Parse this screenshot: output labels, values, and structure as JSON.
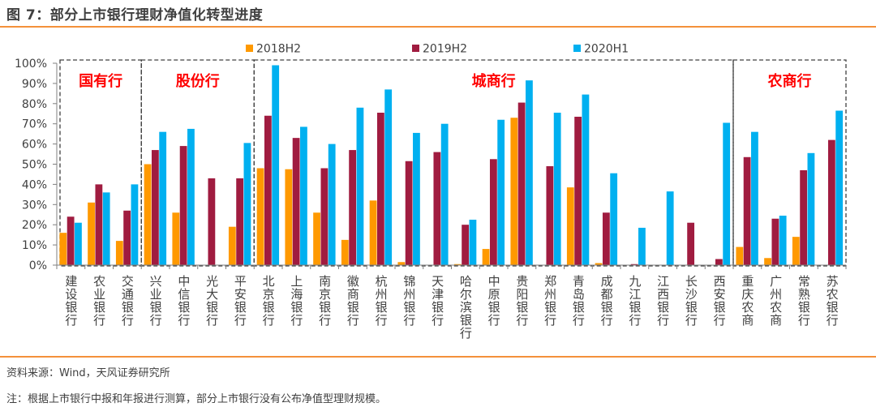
{
  "figure": {
    "title": "图 7：部分上市银行理财净值化转型进度",
    "source": "资料来源：Wind，天风证券研究所",
    "note": "注：根据上市银行中报和年报进行测算，部分上市银行没有公布净值型理财规模。"
  },
  "chart_data": {
    "type": "bar",
    "title": "部分上市银行理财净值化转型进度",
    "xlabel": "",
    "ylabel": "",
    "ylim": [
      0,
      100
    ],
    "yticks": [
      "0%",
      "10%",
      "20%",
      "30%",
      "40%",
      "50%",
      "60%",
      "70%",
      "80%",
      "90%",
      "100%"
    ],
    "grid": false,
    "legend_position": "top",
    "categories": [
      "建设银行",
      "农业银行",
      "交通银行",
      "兴业银行",
      "中信银行",
      "光大银行",
      "平安银行",
      "北京银行",
      "上海银行",
      "南京银行",
      "徽商银行",
      "杭州银行",
      "锦州银行",
      "天津银行",
      "哈尔滨银行",
      "中原银行",
      "贵阳银行",
      "郑州银行",
      "青岛银行",
      "成都银行",
      "九江银行",
      "江西银行",
      "长沙银行",
      "西安银行",
      "重庆农商",
      "广州农商",
      "常熟银行",
      "苏农银行"
    ],
    "series": [
      {
        "name": "2018H2",
        "color": "#ff9900",
        "values": [
          16,
          31,
          12,
          50,
          26,
          0,
          19,
          48,
          47.5,
          26,
          12.5,
          32,
          1.5,
          0,
          0.5,
          8,
          73,
          0,
          38.5,
          1,
          0,
          0,
          0,
          0,
          9,
          3.5,
          14,
          0
        ]
      },
      {
        "name": "2019H2",
        "color": "#a01c40",
        "values": [
          24,
          40,
          27,
          57,
          59,
          43,
          43,
          74,
          63,
          48,
          57,
          75.5,
          51.5,
          56,
          20,
          52.5,
          80.5,
          49,
          73.5,
          26,
          0.5,
          0,
          21,
          3,
          53.5,
          23,
          47,
          62
        ]
      },
      {
        "name": "2020H1",
        "color": "#00b0f0",
        "values": [
          21,
          36,
          40,
          66,
          67.5,
          0,
          60.5,
          99,
          68.5,
          60,
          78,
          87,
          65.5,
          70,
          22.5,
          72,
          91.5,
          75.5,
          84.5,
          45.5,
          18.5,
          36.5,
          0,
          70.5,
          66,
          24.5,
          55.5,
          76.5
        ]
      }
    ],
    "groups": [
      {
        "label": "国有行",
        "start": 0,
        "end": 3,
        "color": "#ff0000"
      },
      {
        "label": "股份行",
        "start": 3,
        "end": 7,
        "color": "#ff0000"
      },
      {
        "label": "城商行",
        "start": 7,
        "end": 24,
        "color": "#ff0000"
      },
      {
        "label": "农商行",
        "start": 24,
        "end": 28,
        "color": "#ff0000"
      }
    ]
  }
}
